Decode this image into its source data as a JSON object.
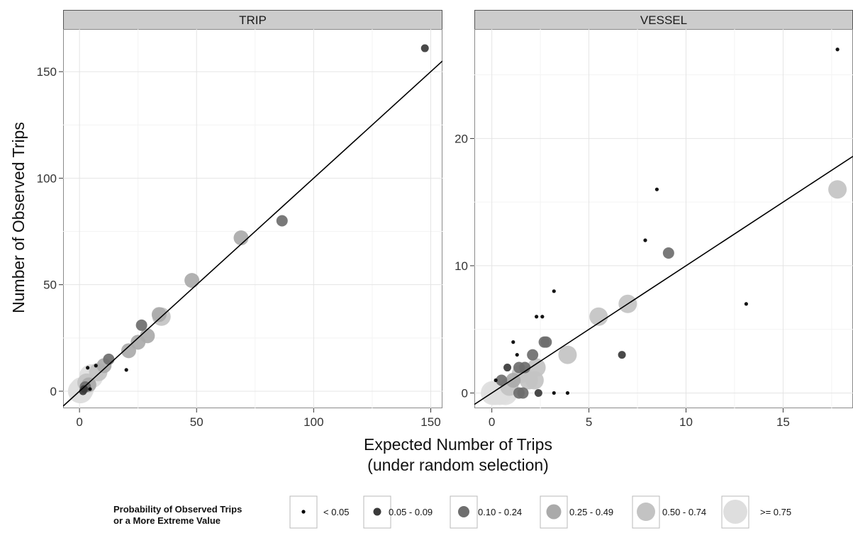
{
  "chart_data": {
    "type": "scatter",
    "ylabel": "Number of Observed Trips",
    "xlabel_line1": "Expected Number of Trips",
    "xlabel_line2": "(under random selection)",
    "legend": {
      "title_line1": "Probability of Observed Trips",
      "title_line2": "or a More Extreme Value",
      "placement": "bottom",
      "classes": [
        "< 0.05",
        "0.05 - 0.09",
        "0.10 - 0.24",
        "0.25 - 0.49",
        "0.50 - 0.74",
        ">= 0.75"
      ],
      "colors": [
        "#000000",
        "#3a3a3a",
        "#6e6e6e",
        "#aaaaaa",
        "#c3c3c3",
        "#dedede"
      ]
    },
    "panels": [
      {
        "title": "TRIP",
        "xlim": [
          -7,
          155
        ],
        "ylim": [
          -8,
          170
        ],
        "xticks": [
          0,
          50,
          100,
          150
        ],
        "yticks": [
          0,
          50,
          100,
          150
        ],
        "line": {
          "x": [
            -7,
            155
          ],
          "y": [
            -7,
            155
          ]
        },
        "points": [
          {
            "x": 147.5,
            "y": 161,
            "c": 1
          },
          {
            "x": 86.5,
            "y": 80,
            "c": 2
          },
          {
            "x": 69,
            "y": 72,
            "c": 3
          },
          {
            "x": 48,
            "y": 52,
            "c": 3
          },
          {
            "x": 35,
            "y": 35,
            "c": 4
          },
          {
            "x": 34,
            "y": 36,
            "c": 3
          },
          {
            "x": 29,
            "y": 26,
            "c": 3
          },
          {
            "x": 26.5,
            "y": 31,
            "c": 2
          },
          {
            "x": 25,
            "y": 23,
            "c": 3
          },
          {
            "x": 21,
            "y": 19,
            "c": 3
          },
          {
            "x": 20,
            "y": 10,
            "c": 0
          },
          {
            "x": 12.5,
            "y": 15,
            "c": 2
          },
          {
            "x": 10.5,
            "y": 12,
            "c": 3
          },
          {
            "x": 8,
            "y": 9,
            "c": 4
          },
          {
            "x": 7,
            "y": 12,
            "c": 0
          },
          {
            "x": 5,
            "y": 7,
            "c": 5
          },
          {
            "x": 3.5,
            "y": 11,
            "c": 0
          },
          {
            "x": 4.5,
            "y": 1,
            "c": 0
          },
          {
            "x": 4,
            "y": 3,
            "c": 3
          },
          {
            "x": 3,
            "y": 4,
            "c": 4
          },
          {
            "x": 2.5,
            "y": 2,
            "c": 2
          },
          {
            "x": 2,
            "y": 1,
            "c": 1
          },
          {
            "x": 1.5,
            "y": 0,
            "c": 1
          },
          {
            "x": 1,
            "y": 1,
            "c": 5
          },
          {
            "x": 0.5,
            "y": 0,
            "c": 5
          },
          {
            "x": 0.2,
            "y": 0,
            "c": 5
          }
        ]
      },
      {
        "title": "VESSEL",
        "xlim": [
          -0.9,
          18.6
        ],
        "ylim": [
          -1.2,
          28.6
        ],
        "xticks": [
          0,
          5,
          10,
          15
        ],
        "yticks": [
          0,
          10,
          20
        ],
        "line": {
          "x": [
            -0.9,
            18.6
          ],
          "y": [
            -0.9,
            18.6
          ]
        },
        "points": [
          {
            "x": 17.8,
            "y": 27,
            "c": 0
          },
          {
            "x": 17.8,
            "y": 16,
            "c": 4
          },
          {
            "x": 8.5,
            "y": 16,
            "c": 0
          },
          {
            "x": 7.9,
            "y": 12,
            "c": 0
          },
          {
            "x": 9.1,
            "y": 11,
            "c": 2
          },
          {
            "x": 13.1,
            "y": 7,
            "c": 0
          },
          {
            "x": 7,
            "y": 7,
            "c": 4
          },
          {
            "x": 5.5,
            "y": 6,
            "c": 4
          },
          {
            "x": 6.7,
            "y": 3,
            "c": 1
          },
          {
            "x": 3.2,
            "y": 8,
            "c": 0
          },
          {
            "x": 2.3,
            "y": 6,
            "c": 0
          },
          {
            "x": 2.6,
            "y": 6,
            "c": 0
          },
          {
            "x": 2.7,
            "y": 4,
            "c": 2
          },
          {
            "x": 2.8,
            "y": 4,
            "c": 2
          },
          {
            "x": 3.9,
            "y": 3,
            "c": 4
          },
          {
            "x": 2.1,
            "y": 3,
            "c": 2
          },
          {
            "x": 1.1,
            "y": 4,
            "c": 0
          },
          {
            "x": 1.3,
            "y": 3,
            "c": 0
          },
          {
            "x": 0.8,
            "y": 2,
            "c": 1
          },
          {
            "x": 1.4,
            "y": 2,
            "c": 2
          },
          {
            "x": 1.7,
            "y": 2,
            "c": 2
          },
          {
            "x": 2.3,
            "y": 2,
            "c": 4
          },
          {
            "x": 2.2,
            "y": 1,
            "c": 4
          },
          {
            "x": 1.9,
            "y": 1,
            "c": 4
          },
          {
            "x": 1.5,
            "y": 1.5,
            "c": 4
          },
          {
            "x": 1.1,
            "y": 1,
            "c": 3
          },
          {
            "x": 0.5,
            "y": 1,
            "c": 2
          },
          {
            "x": 0.2,
            "y": 1,
            "c": 0
          },
          {
            "x": 1.4,
            "y": 0,
            "c": 2
          },
          {
            "x": 1.6,
            "y": 0,
            "c": 2
          },
          {
            "x": 2.4,
            "y": 0,
            "c": 1
          },
          {
            "x": 3.2,
            "y": 0,
            "c": 0
          },
          {
            "x": 3.9,
            "y": 0,
            "c": 0
          },
          {
            "x": 0.9,
            "y": 0.5,
            "c": 4
          },
          {
            "x": 0.7,
            "y": 0,
            "c": 5
          },
          {
            "x": 0.4,
            "y": 0,
            "c": 5
          },
          {
            "x": 0.2,
            "y": 0,
            "c": 5
          },
          {
            "x": 0.05,
            "y": 0,
            "c": 5
          }
        ]
      }
    ]
  }
}
